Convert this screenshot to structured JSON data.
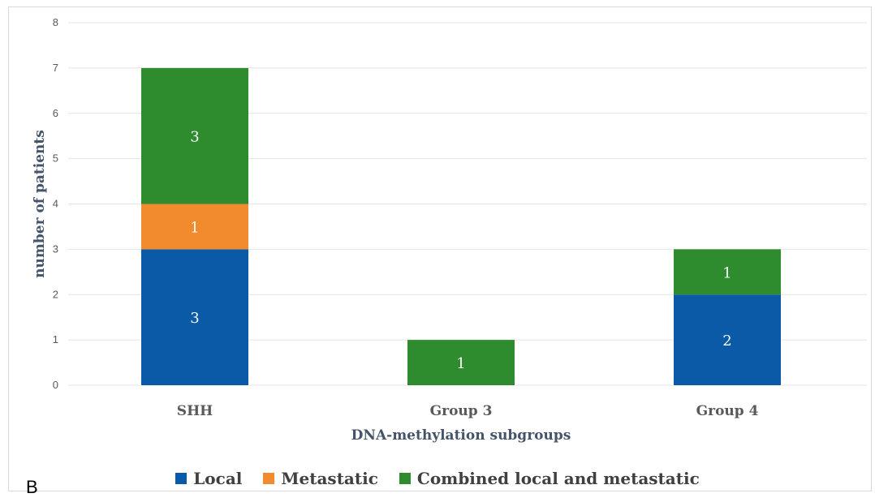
{
  "panel_label": "B",
  "colors": {
    "local": "#0b5aa8",
    "metastatic": "#f28a2e",
    "combined": "#2e8b2e",
    "grid": "#e4e4e4"
  },
  "chart_data": {
    "type": "bar",
    "stacked": true,
    "title": "",
    "xlabel": "DNA-methylation subgroups",
    "ylabel": "number of patients",
    "ylim": [
      0,
      8
    ],
    "yticks": [
      "0",
      "1",
      "2",
      "3",
      "4",
      "5",
      "6",
      "7",
      "8"
    ],
    "categories": [
      "SHH",
      "Group 3",
      "Group 4"
    ],
    "series": [
      {
        "name": "Local",
        "color_key": "local",
        "values": [
          3,
          0,
          2
        ]
      },
      {
        "name": "Metastatic",
        "color_key": "metastatic",
        "values": [
          1,
          0,
          0
        ]
      },
      {
        "name": "Combined local and metastatic",
        "color_key": "combined",
        "values": [
          3,
          1,
          1
        ]
      }
    ],
    "grid": true,
    "legend_position": "bottom"
  }
}
